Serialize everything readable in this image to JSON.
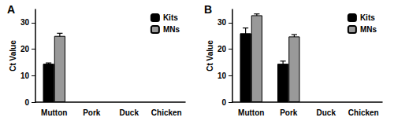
{
  "chart_data": [
    {
      "type": "bar",
      "title": "A",
      "y_label": "Ct Value",
      "categories": [
        "Mutton",
        "Pork",
        "Duck",
        "Chicken"
      ],
      "series": [
        {
          "name": "Kits",
          "color": "#000000",
          "values": [
            14.5,
            null,
            null,
            null
          ],
          "errors": [
            0.3,
            null,
            null,
            null
          ]
        },
        {
          "name": "MNs",
          "color": "#999999",
          "values": [
            25,
            null,
            null,
            null
          ],
          "errors": [
            1,
            null,
            null,
            null
          ]
        }
      ],
      "ylim": [
        0,
        35
      ],
      "yticks": [
        0,
        10,
        20,
        30
      ],
      "grid": false,
      "legend": "upper right"
    },
    {
      "type": "bar",
      "title": "B",
      "y_label": "Ct Value",
      "categories": [
        "Mutton",
        "Pork",
        "Duck",
        "Chicken"
      ],
      "series": [
        {
          "name": "Kits",
          "color": "#000000",
          "values": [
            26,
            14.5,
            null,
            null
          ],
          "errors": [
            2,
            1,
            null,
            null
          ]
        },
        {
          "name": "MNs",
          "color": "#999999",
          "values": [
            32.8,
            24.8,
            null,
            null
          ],
          "errors": [
            0.5,
            0.7,
            null,
            null
          ]
        }
      ],
      "ylim": [
        0,
        35
      ],
      "yticks": [
        0,
        10,
        20,
        30
      ],
      "grid": false,
      "legend": "upper right"
    }
  ]
}
